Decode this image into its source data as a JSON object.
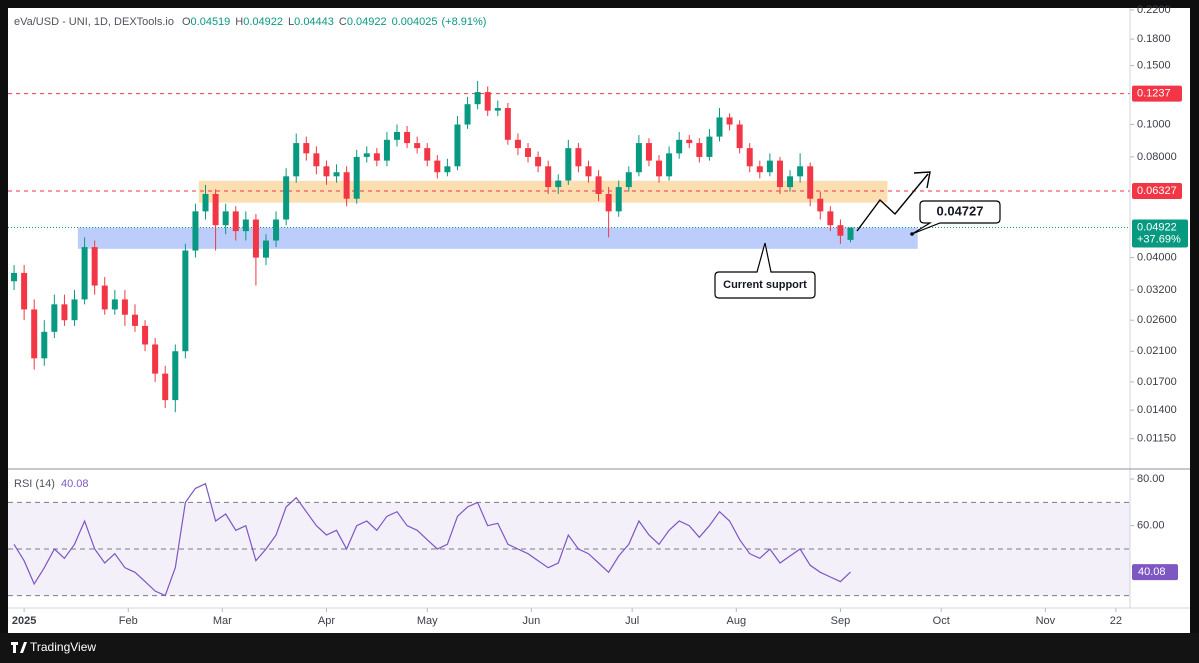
{
  "header": {
    "symbol": "eVa/USD - UNI, 1D, DEXTools.io",
    "ohlc": [
      {
        "label": "O",
        "value": 0.04519
      },
      {
        "label": "H",
        "value": 0.04922
      },
      {
        "label": "L",
        "value": 0.04443
      },
      {
        "label": "C",
        "value": 0.04922
      }
    ],
    "change": 0.004025,
    "change_pct": "(+8.91%)"
  },
  "chart_data": [
    {
      "type": "candlestick",
      "log_scale": true,
      "up_color": "#089981",
      "down_color": "#f23645",
      "x": [
        -3,
        0,
        3,
        6,
        9,
        12,
        15,
        18,
        21,
        24,
        27,
        30,
        33,
        36,
        39,
        42,
        45,
        48,
        51,
        54,
        57,
        60,
        63,
        66,
        69,
        72,
        75,
        78,
        81,
        84,
        87,
        90,
        93,
        96,
        99,
        102,
        105,
        108,
        111,
        114,
        117,
        120,
        123,
        126,
        129,
        132,
        135,
        138,
        141,
        144,
        147,
        150,
        153,
        156,
        159,
        162,
        165,
        168,
        171,
        174,
        177,
        180,
        183,
        186,
        189,
        192,
        195,
        198,
        201,
        204,
        207,
        210,
        213,
        216,
        219,
        222,
        225,
        228,
        231,
        234,
        237,
        240,
        243,
        246
      ],
      "open": [
        0.034,
        0.036,
        0.028,
        0.02,
        0.024,
        0.029,
        0.026,
        0.03,
        0.043,
        0.033,
        0.028,
        0.03,
        0.027,
        0.025,
        0.022,
        0.018,
        0.015,
        0.021,
        0.042,
        0.055,
        0.062,
        0.05,
        0.055,
        0.048,
        0.052,
        0.04,
        0.045,
        0.052,
        0.07,
        0.088,
        0.082,
        0.075,
        0.07,
        0.072,
        0.06,
        0.08,
        0.082,
        0.078,
        0.09,
        0.095,
        0.088,
        0.085,
        0.078,
        0.072,
        0.075,
        0.1,
        0.115,
        0.125,
        0.11,
        0.112,
        0.09,
        0.085,
        0.08,
        0.075,
        0.065,
        0.068,
        0.085,
        0.075,
        0.07,
        0.062,
        0.055,
        0.065,
        0.072,
        0.088,
        0.078,
        0.07,
        0.082,
        0.09,
        0.088,
        0.08,
        0.092,
        0.105,
        0.1,
        0.085,
        0.075,
        0.072,
        0.078,
        0.065,
        0.07,
        0.075,
        0.06,
        0.055,
        0.05,
        0.04519
      ],
      "high": [
        0.038,
        0.038,
        0.03,
        0.026,
        0.031,
        0.031,
        0.032,
        0.046,
        0.045,
        0.035,
        0.032,
        0.032,
        0.029,
        0.026,
        0.023,
        0.019,
        0.022,
        0.044,
        0.058,
        0.066,
        0.064,
        0.058,
        0.057,
        0.055,
        0.054,
        0.047,
        0.055,
        0.074,
        0.094,
        0.092,
        0.086,
        0.078,
        0.076,
        0.075,
        0.084,
        0.086,
        0.085,
        0.095,
        0.1,
        0.099,
        0.092,
        0.088,
        0.081,
        0.079,
        0.106,
        0.121,
        0.135,
        0.13,
        0.118,
        0.116,
        0.094,
        0.088,
        0.083,
        0.078,
        0.071,
        0.09,
        0.088,
        0.078,
        0.073,
        0.065,
        0.068,
        0.075,
        0.093,
        0.091,
        0.081,
        0.086,
        0.095,
        0.093,
        0.091,
        0.097,
        0.112,
        0.108,
        0.103,
        0.088,
        0.078,
        0.082,
        0.08,
        0.073,
        0.082,
        0.077,
        0.063,
        0.057,
        0.052,
        0.04922
      ],
      "low": [
        0.032,
        0.026,
        0.0185,
        0.019,
        0.023,
        0.025,
        0.025,
        0.029,
        0.031,
        0.027,
        0.027,
        0.025,
        0.024,
        0.021,
        0.017,
        0.0142,
        0.0138,
        0.02,
        0.04,
        0.052,
        0.042,
        0.047,
        0.045,
        0.045,
        0.033,
        0.038,
        0.043,
        0.05,
        0.067,
        0.078,
        0.071,
        0.066,
        0.067,
        0.057,
        0.058,
        0.077,
        0.075,
        0.075,
        0.086,
        0.085,
        0.082,
        0.075,
        0.069,
        0.07,
        0.073,
        0.097,
        0.111,
        0.106,
        0.106,
        0.087,
        0.081,
        0.077,
        0.072,
        0.062,
        0.062,
        0.066,
        0.072,
        0.067,
        0.059,
        0.046,
        0.053,
        0.063,
        0.07,
        0.075,
        0.067,
        0.068,
        0.079,
        0.085,
        0.077,
        0.078,
        0.089,
        0.096,
        0.082,
        0.072,
        0.069,
        0.07,
        0.062,
        0.063,
        0.067,
        0.057,
        0.052,
        0.048,
        0.044,
        0.04443
      ],
      "close": [
        0.036,
        0.028,
        0.02,
        0.024,
        0.029,
        0.026,
        0.03,
        0.043,
        0.033,
        0.028,
        0.03,
        0.027,
        0.025,
        0.022,
        0.018,
        0.015,
        0.021,
        0.042,
        0.055,
        0.062,
        0.05,
        0.055,
        0.048,
        0.052,
        0.04,
        0.045,
        0.052,
        0.07,
        0.088,
        0.082,
        0.075,
        0.07,
        0.072,
        0.06,
        0.08,
        0.082,
        0.078,
        0.09,
        0.095,
        0.088,
        0.085,
        0.078,
        0.072,
        0.075,
        0.1,
        0.115,
        0.125,
        0.11,
        0.112,
        0.09,
        0.085,
        0.08,
        0.075,
        0.065,
        0.068,
        0.085,
        0.075,
        0.07,
        0.062,
        0.055,
        0.065,
        0.072,
        0.088,
        0.078,
        0.07,
        0.082,
        0.09,
        0.088,
        0.08,
        0.092,
        0.105,
        0.1,
        0.085,
        0.075,
        0.072,
        0.078,
        0.065,
        0.07,
        0.075,
        0.06,
        0.055,
        0.05,
        0.0465,
        0.04922
      ],
      "xlim": [
        -4.8,
        329.2
      ],
      "xticks": [
        {
          "value": 0,
          "label": "2025"
        },
        {
          "value": 31,
          "label": "Feb"
        },
        {
          "value": 59,
          "label": "Mar"
        },
        {
          "value": 90,
          "label": "Apr"
        },
        {
          "value": 120,
          "label": "May"
        },
        {
          "value": 151,
          "label": "Jun"
        },
        {
          "value": 181,
          "label": "Jul"
        },
        {
          "value": 212,
          "label": "Aug"
        },
        {
          "value": 243,
          "label": "Sep"
        },
        {
          "value": 273,
          "label": "Oct"
        },
        {
          "value": 304,
          "label": "Nov"
        },
        {
          "value": 325,
          "label": "22"
        }
      ],
      "ylim": [
        0.0094,
        0.223
      ],
      "yticks": [
        {
          "value": 0.22,
          "label": "0.2200"
        },
        {
          "value": 0.18,
          "label": "0.1800"
        },
        {
          "value": 0.15,
          "label": "0.1500"
        },
        {
          "value": 0.1,
          "label": "0.1000"
        },
        {
          "value": 0.08,
          "label": "0.08000"
        },
        {
          "value": 0.04,
          "label": "0.04000"
        },
        {
          "value": 0.032,
          "label": "0.03200"
        },
        {
          "value": 0.026,
          "label": "0.02600"
        },
        {
          "value": 0.021,
          "label": "0.02100"
        },
        {
          "value": 0.017,
          "label": "0.01700"
        },
        {
          "value": 0.014,
          "label": "0.01400"
        },
        {
          "value": 0.0115,
          "label": "0.01150"
        }
      ],
      "levels": [
        {
          "value": 0.1237,
          "color": "#f23645"
        },
        {
          "value": 0.06327,
          "color": "#f23645"
        }
      ],
      "last_price": {
        "value": 0.04922,
        "change_label": "+37.69%",
        "color": "#089981"
      },
      "zones": [
        {
          "x": [
            52,
            257
          ],
          "y": [
            0.0584,
            0.0679
          ],
          "color": "#fcd9a3"
        },
        {
          "x": [
            16,
            266
          ],
          "y": [
            0.0425,
            0.0492
          ],
          "color": "#b0c4fa"
        }
      ]
    },
    {
      "type": "line",
      "title": "RSI (14)",
      "color": "#7e57c2",
      "x": [
        -3,
        0,
        3,
        6,
        9,
        12,
        15,
        18,
        21,
        24,
        27,
        30,
        33,
        36,
        39,
        42,
        45,
        48,
        51,
        54,
        57,
        60,
        63,
        66,
        69,
        72,
        75,
        78,
        81,
        84,
        87,
        90,
        93,
        96,
        99,
        102,
        105,
        108,
        111,
        114,
        117,
        120,
        123,
        126,
        129,
        132,
        135,
        138,
        141,
        144,
        147,
        150,
        153,
        156,
        159,
        162,
        165,
        168,
        171,
        174,
        177,
        180,
        183,
        186,
        189,
        192,
        195,
        198,
        201,
        204,
        207,
        210,
        213,
        216,
        219,
        222,
        225,
        228,
        231,
        234,
        237,
        240,
        243,
        246
      ],
      "values": [
        52,
        45,
        35,
        42,
        50,
        46,
        52,
        62,
        50,
        44,
        48,
        42,
        40,
        36,
        32,
        30,
        42,
        70,
        76,
        78,
        62,
        65,
        58,
        60,
        45,
        50,
        56,
        68,
        72,
        66,
        60,
        56,
        58,
        50,
        60,
        62,
        58,
        64,
        66,
        60,
        58,
        54,
        50,
        52,
        64,
        68,
        70,
        60,
        61,
        52,
        50,
        48,
        45,
        42,
        44,
        56,
        50,
        48,
        44,
        40,
        47,
        52,
        62,
        56,
        52,
        58,
        62,
        60,
        55,
        60,
        66,
        62,
        54,
        48,
        46,
        50,
        44,
        47,
        50,
        43,
        40,
        38,
        36,
        40.08
      ],
      "ylim": [
        24.7,
        84.3
      ],
      "yticks": [
        {
          "value": 80,
          "label": "80.00"
        },
        {
          "value": 60,
          "label": "60.00"
        }
      ],
      "levels": [
        70,
        50,
        30
      ],
      "band": [
        30,
        70
      ]
    }
  ],
  "annotations": {
    "support_label": "Current support",
    "target_value": 0.04727
  },
  "footer": {
    "brand": "TradingView"
  }
}
